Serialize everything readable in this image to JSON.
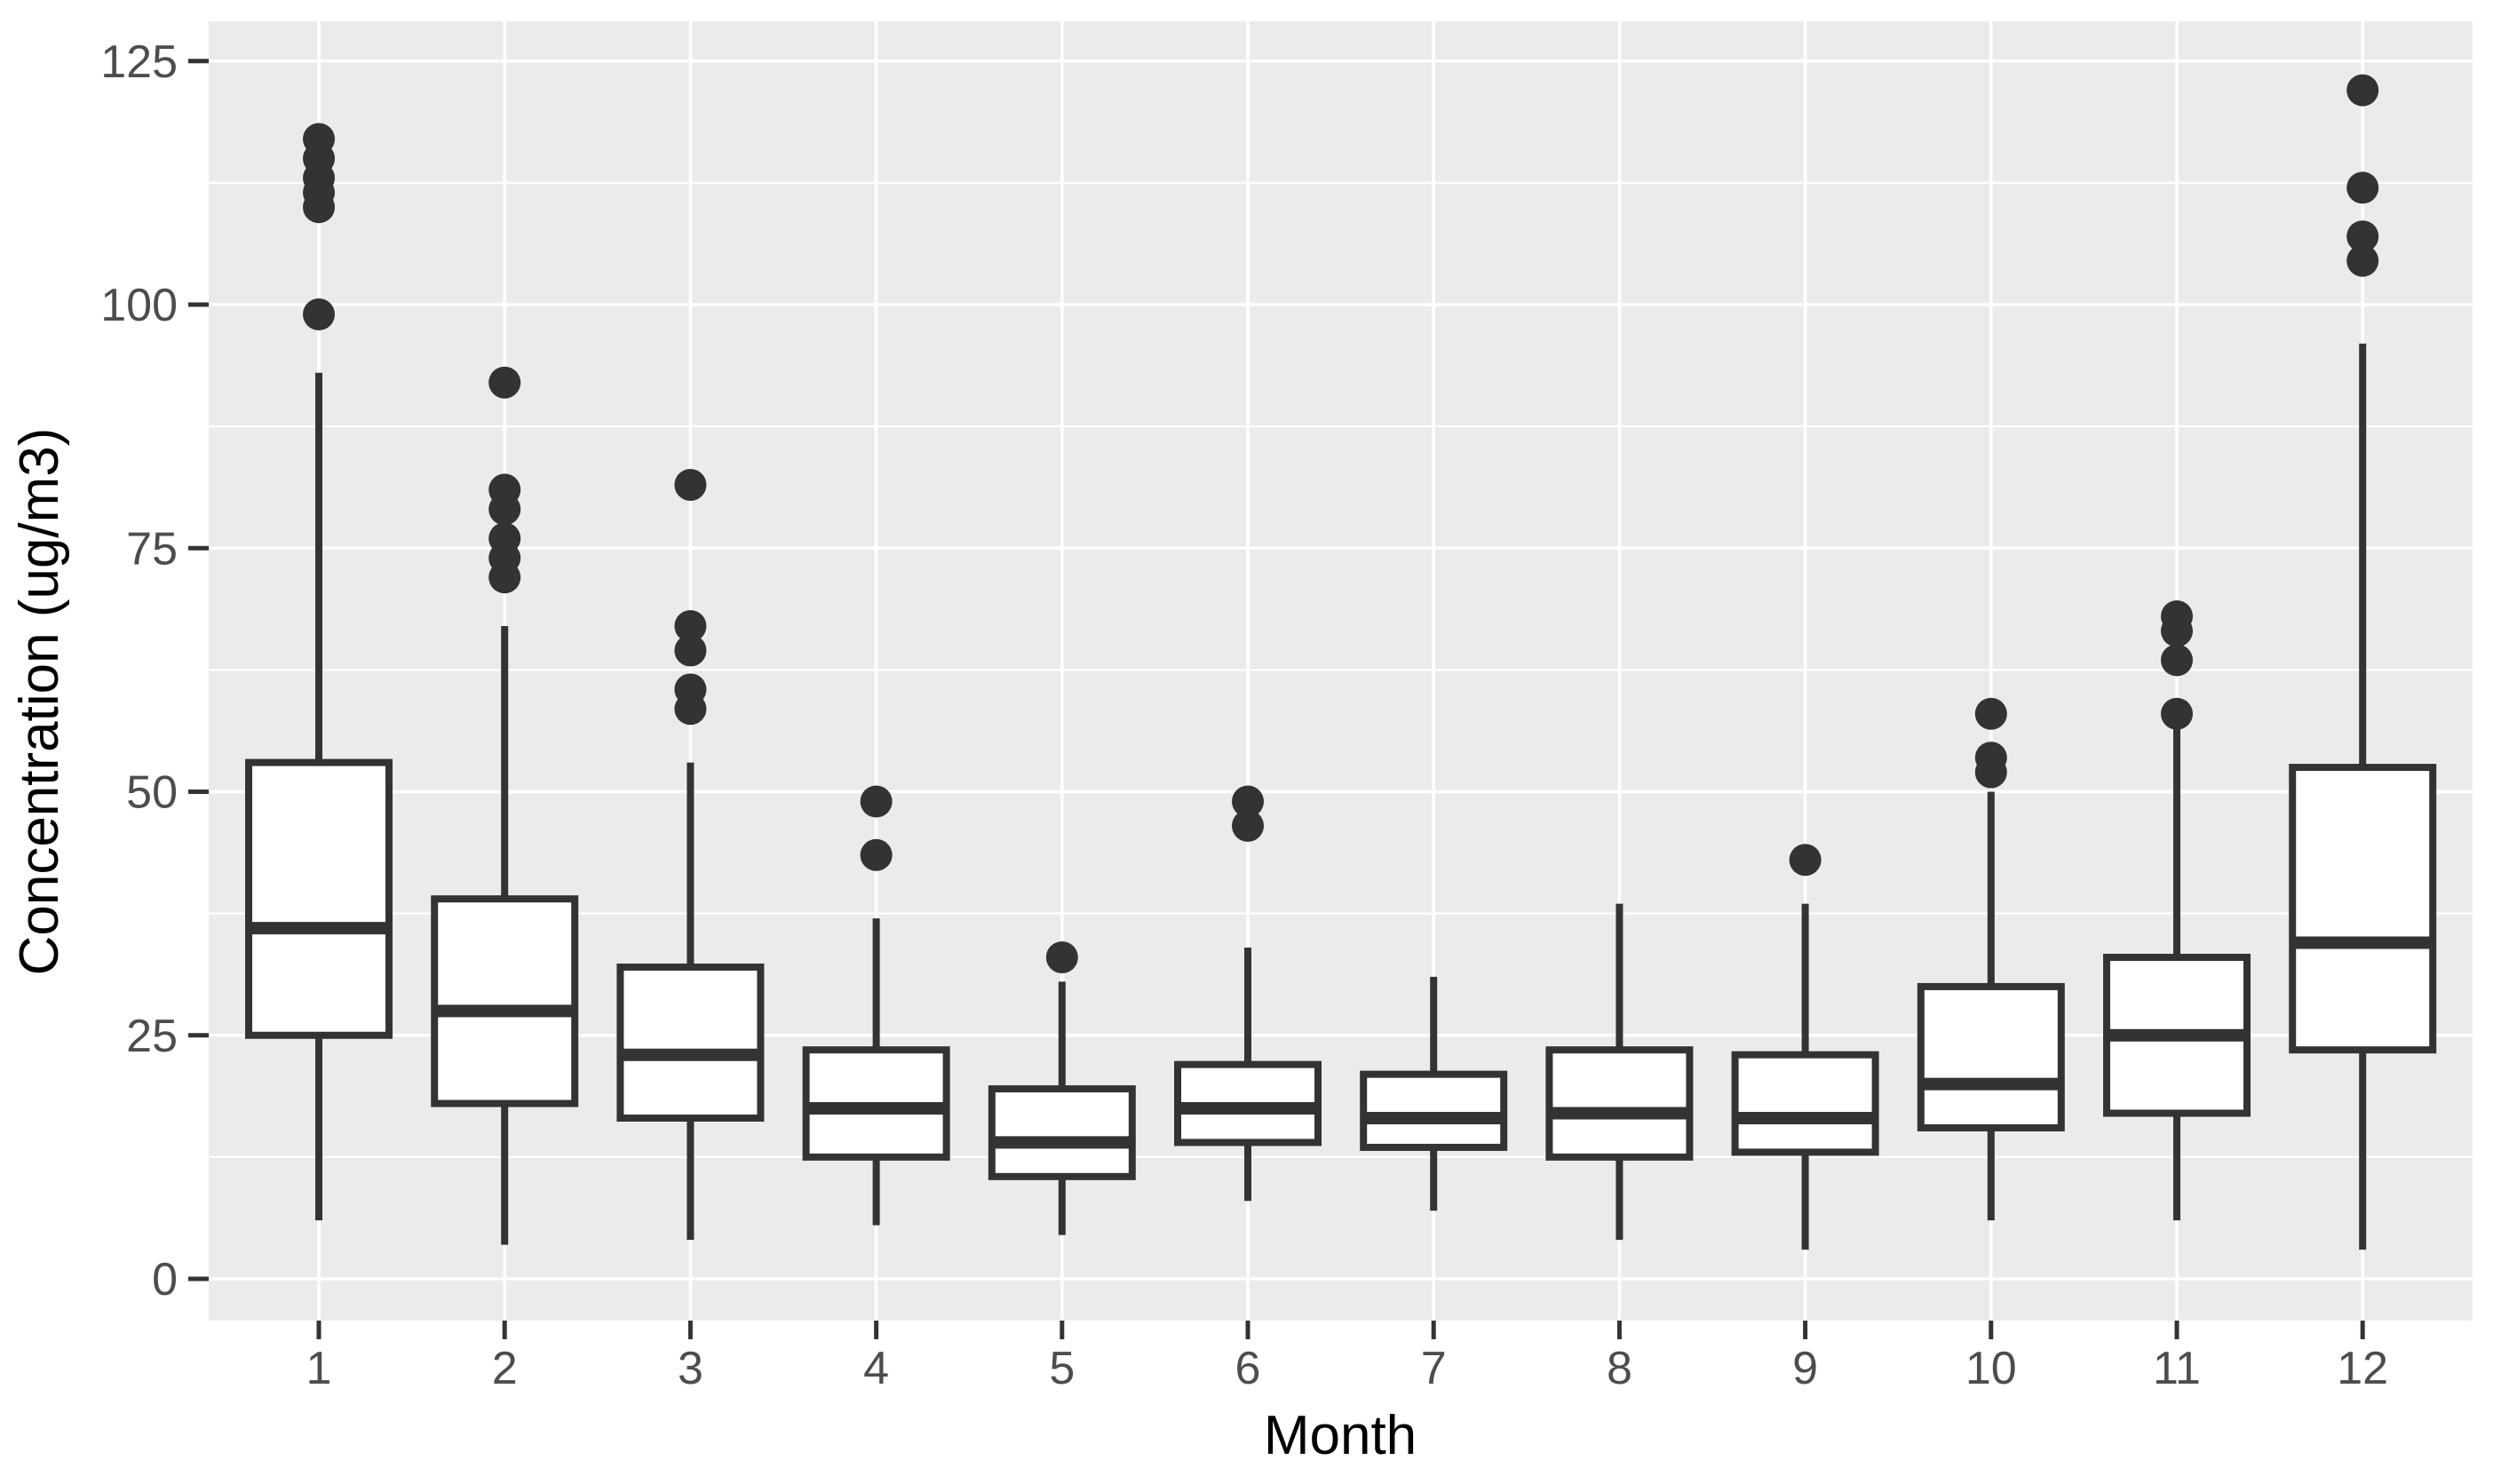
{
  "chart_data": {
    "type": "boxplot",
    "title": "",
    "xlabel": "Month",
    "ylabel": "Concentration (ug/m3)",
    "x_tick_labels": [
      "1",
      "2",
      "3",
      "4",
      "5",
      "6",
      "7",
      "8",
      "9",
      "10",
      "11",
      "12"
    ],
    "y_ticks": [
      0,
      25,
      50,
      75,
      100,
      125
    ],
    "y_minor_ticks": [
      12.5,
      37.5,
      62.5,
      87.5,
      112.5
    ],
    "ylim": [
      -4.3,
      129.3
    ],
    "legend_position": "none",
    "grid": "white major and minor horizontal/vertical gridlines on grey panel",
    "boxes": [
      {
        "month": "1",
        "whisker_low": 6,
        "q1": 25,
        "median": 36,
        "q3": 53,
        "whisker_high": 93,
        "outliers": [
          99,
          110,
          111.5,
          113,
          115,
          117
        ]
      },
      {
        "month": "2",
        "whisker_low": 3.5,
        "q1": 18,
        "median": 27.5,
        "q3": 39,
        "whisker_high": 67,
        "outliers": [
          72,
          74,
          76,
          79,
          81,
          92
        ]
      },
      {
        "month": "3",
        "whisker_low": 4,
        "q1": 16.5,
        "median": 23,
        "q3": 32,
        "whisker_high": 53,
        "outliers": [
          58.5,
          60.5,
          64.5,
          67,
          81.5
        ]
      },
      {
        "month": "4",
        "whisker_low": 5.5,
        "q1": 12.5,
        "median": 17.5,
        "q3": 23.5,
        "whisker_high": 37,
        "outliers": [
          43.5,
          49
        ]
      },
      {
        "month": "5",
        "whisker_low": 4.5,
        "q1": 10.5,
        "median": 14,
        "q3": 19.5,
        "whisker_high": 30.5,
        "outliers": [
          33
        ]
      },
      {
        "month": "6",
        "whisker_low": 8,
        "q1": 14,
        "median": 17.5,
        "q3": 22,
        "whisker_high": 34,
        "outliers": [
          46.5,
          49
        ]
      },
      {
        "month": "7",
        "whisker_low": 7,
        "q1": 13.5,
        "median": 16.5,
        "q3": 21,
        "whisker_high": 31,
        "outliers": []
      },
      {
        "month": "8",
        "whisker_low": 4,
        "q1": 12.5,
        "median": 17,
        "q3": 23.5,
        "whisker_high": 38.5,
        "outliers": []
      },
      {
        "month": "9",
        "whisker_low": 3,
        "q1": 13,
        "median": 16.5,
        "q3": 23,
        "whisker_high": 38.5,
        "outliers": [
          43
        ]
      },
      {
        "month": "10",
        "whisker_low": 6,
        "q1": 15.5,
        "median": 20,
        "q3": 30,
        "whisker_high": 50,
        "outliers": [
          52,
          53.5,
          58
        ]
      },
      {
        "month": "11",
        "whisker_low": 6,
        "q1": 17,
        "median": 25,
        "q3": 33,
        "whisker_high": 57,
        "outliers": [
          58,
          63.5,
          66.5,
          68
        ]
      },
      {
        "month": "12",
        "whisker_low": 3,
        "q1": 23.5,
        "median": 34.5,
        "q3": 52.5,
        "whisker_high": 96,
        "outliers": [
          104.5,
          107,
          112,
          122
        ]
      }
    ]
  },
  "style": {
    "panel_bg": "#EBEBEB",
    "grid_color": "#FFFFFF",
    "box_color": "#333333",
    "box_fill": "#FFFFFF",
    "tick_text_color": "#4D4D4D",
    "title_text_color": "#000000",
    "page_bg": "#FFFFFF"
  }
}
